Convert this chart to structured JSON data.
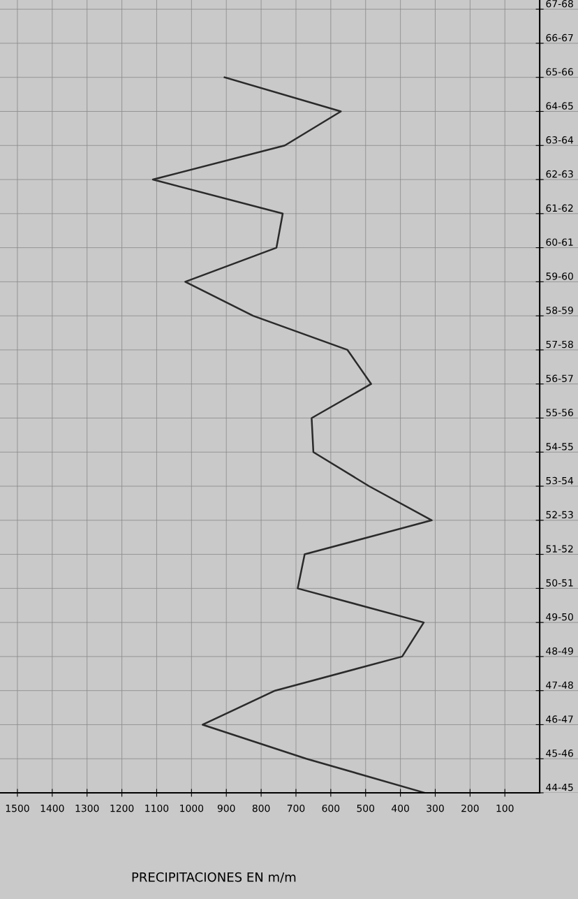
{
  "chart_data": {
    "type": "line",
    "orientation": "horizontal",
    "xlabel": "PRECIPITACIONES EN m/m",
    "categories": [
      "67-68",
      "66-67",
      "65-66",
      "64-65",
      "63-64",
      "62-63",
      "61-62",
      "60-61",
      "59-60",
      "58-59",
      "57-58",
      "56-57",
      "55-56",
      "54-55",
      "53-54",
      "52-53",
      "51-52",
      "50-51",
      "49-50",
      "48-49",
      "47-48",
      "46-47",
      "45-46",
      "44-45"
    ],
    "series": [
      {
        "color": "#2a2a2a",
        "values": [
          null,
          null,
          905,
          571,
          732,
          1111,
          738,
          756,
          1018,
          823,
          552,
          484,
          655,
          650,
          490,
          310,
          675,
          695,
          333,
          395,
          760,
          968,
          670,
          330
        ]
      }
    ],
    "xlim": [
      1550,
      -110
    ],
    "xticks": [
      1500,
      1400,
      1300,
      1200,
      1100,
      1000,
      900,
      800,
      700,
      600,
      500,
      400,
      300,
      200,
      100
    ],
    "grid": true,
    "marker": "none",
    "line_style": "solid"
  }
}
